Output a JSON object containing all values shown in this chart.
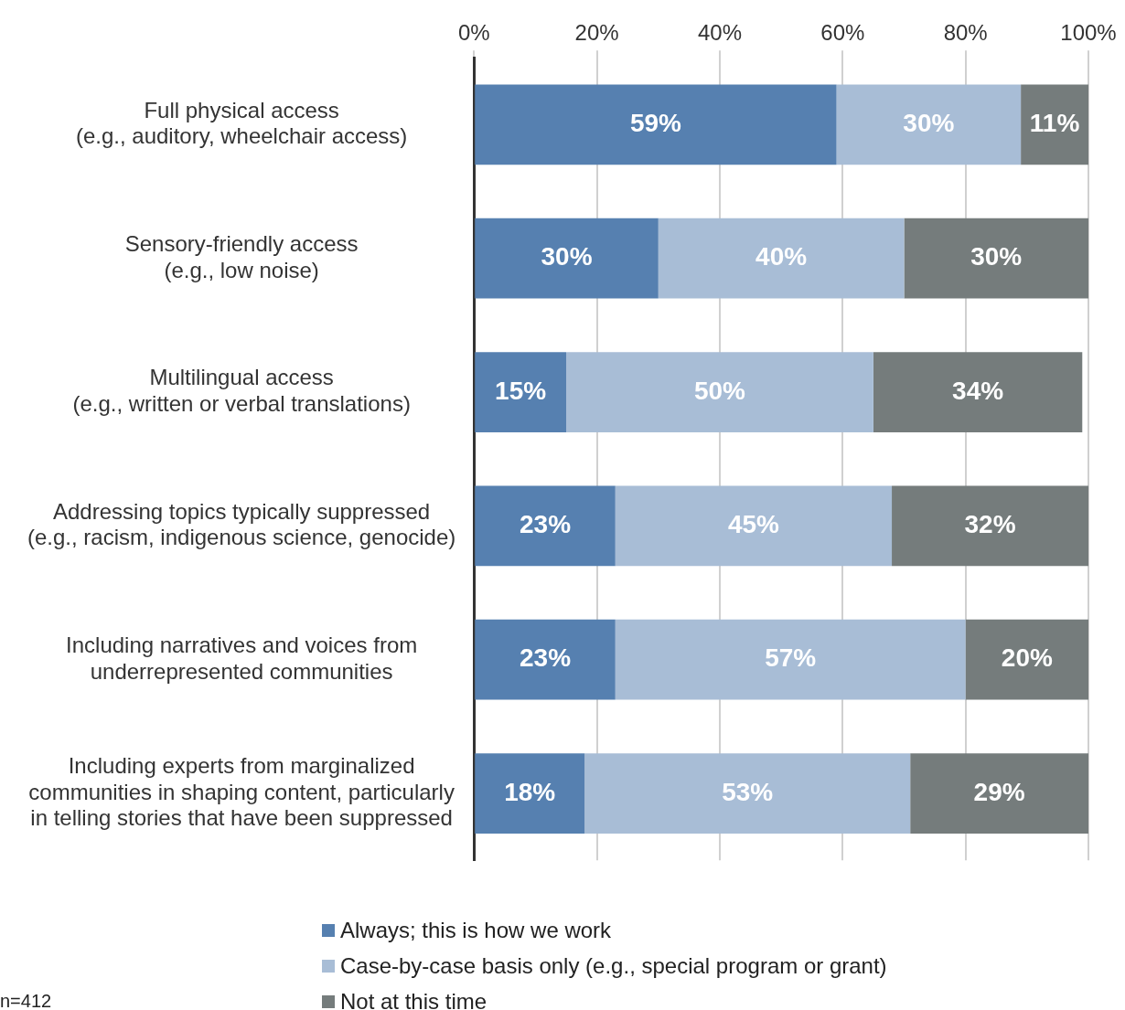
{
  "chart_data": {
    "type": "bar",
    "orientation": "horizontal",
    "stacked": true,
    "categories": [
      "Full physical access\n(e.g., auditory, wheelchair access)",
      "Sensory-friendly access\n(e.g., low noise)",
      "Multilingual access\n(e.g., written or verbal translations)",
      "Addressing topics typically suppressed\n(e.g., racism, indigenous science, genocide)",
      "Including narratives and voices from\nunderrepresented communities",
      "Including experts from marginalized\ncommunities in shaping content, particularly\nin telling stories that have been suppressed"
    ],
    "series": [
      {
        "name": "Always; this is how we work",
        "color": "#5680b0",
        "values": [
          59,
          30,
          15,
          23,
          23,
          18
        ],
        "value_labels": [
          "59%",
          "30%",
          "15%",
          "23%",
          "23%",
          "18%"
        ]
      },
      {
        "name": "Case-by-case basis only (e.g., special program or grant)",
        "color": "#a8bdd6",
        "values": [
          30,
          40,
          50,
          45,
          57,
          53
        ],
        "value_labels": [
          "30%",
          "40%",
          "50%",
          "45%",
          "57%",
          "53%"
        ]
      },
      {
        "name": "Not at this time",
        "color": "#757c7c",
        "values": [
          11,
          30,
          34,
          32,
          20,
          29
        ],
        "value_labels": [
          "11%",
          "30%",
          "34%",
          "32%",
          "20%",
          "29%"
        ]
      }
    ],
    "xlim": [
      0,
      100
    ],
    "xticks": [
      {
        "value": 0,
        "label": "0%"
      },
      {
        "value": 20,
        "label": "20%"
      },
      {
        "value": 40,
        "label": "40%"
      },
      {
        "value": 60,
        "label": "60%"
      },
      {
        "value": 80,
        "label": "80%"
      },
      {
        "value": 100,
        "label": "100%"
      }
    ],
    "grid": "x",
    "legend": "bottom",
    "annotations": [
      "n=412"
    ]
  }
}
